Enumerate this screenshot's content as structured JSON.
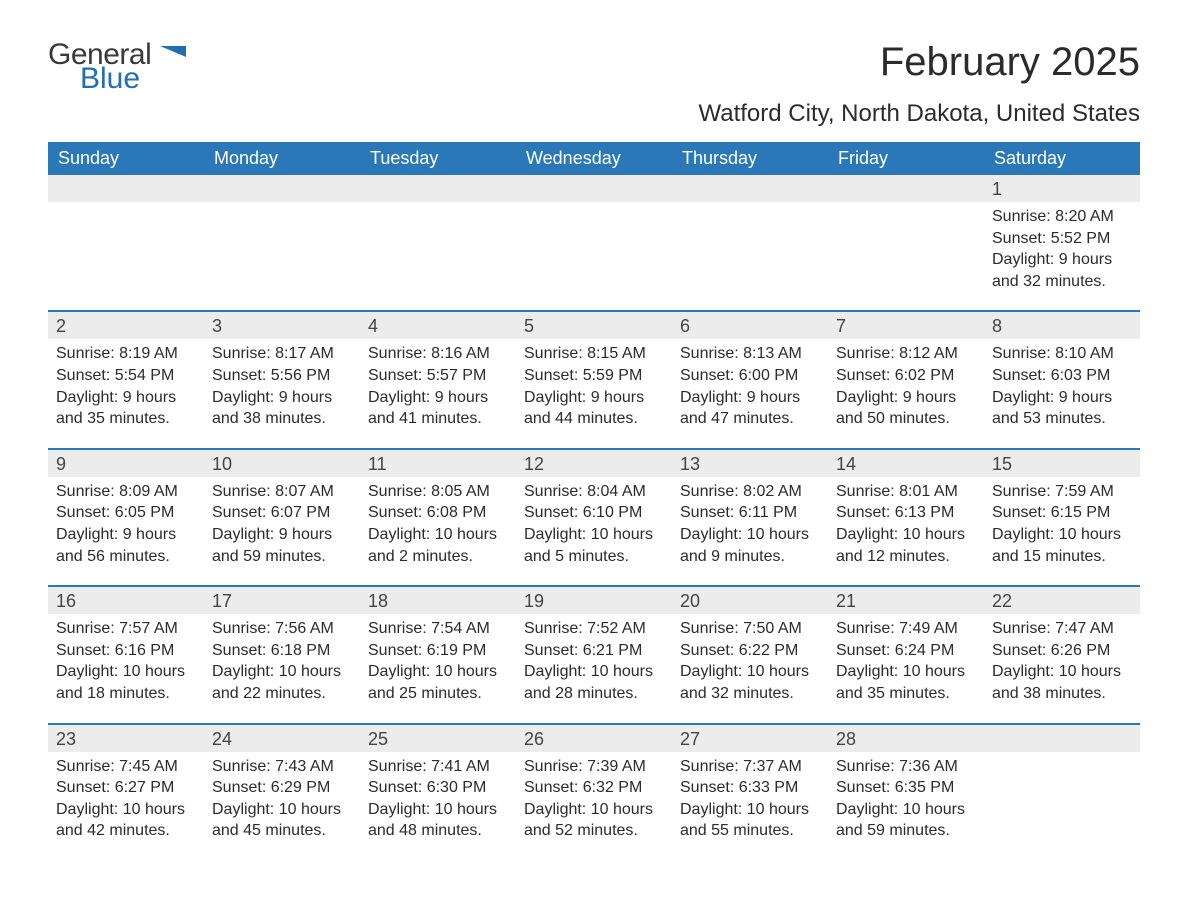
{
  "logo": {
    "text1": "General",
    "text2": "Blue",
    "flag_color": "#1f6fb2"
  },
  "title": "February 2025",
  "subtitle": "Watford City, North Dakota, United States",
  "header_bg": "#2b78b8",
  "header_fg": "#ffffff",
  "num_bg": "#ececec",
  "week_border": "#2b78b8",
  "daynames": [
    "Sunday",
    "Monday",
    "Tuesday",
    "Wednesday",
    "Thursday",
    "Friday",
    "Saturday"
  ],
  "weeks": [
    [
      {
        "n": "",
        "lines": []
      },
      {
        "n": "",
        "lines": []
      },
      {
        "n": "",
        "lines": []
      },
      {
        "n": "",
        "lines": []
      },
      {
        "n": "",
        "lines": []
      },
      {
        "n": "",
        "lines": []
      },
      {
        "n": "1",
        "lines": [
          "Sunrise: 8:20 AM",
          "Sunset: 5:52 PM",
          "Daylight: 9 hours and 32 minutes."
        ]
      }
    ],
    [
      {
        "n": "2",
        "lines": [
          "Sunrise: 8:19 AM",
          "Sunset: 5:54 PM",
          "Daylight: 9 hours and 35 minutes."
        ]
      },
      {
        "n": "3",
        "lines": [
          "Sunrise: 8:17 AM",
          "Sunset: 5:56 PM",
          "Daylight: 9 hours and 38 minutes."
        ]
      },
      {
        "n": "4",
        "lines": [
          "Sunrise: 8:16 AM",
          "Sunset: 5:57 PM",
          "Daylight: 9 hours and 41 minutes."
        ]
      },
      {
        "n": "5",
        "lines": [
          "Sunrise: 8:15 AM",
          "Sunset: 5:59 PM",
          "Daylight: 9 hours and 44 minutes."
        ]
      },
      {
        "n": "6",
        "lines": [
          "Sunrise: 8:13 AM",
          "Sunset: 6:00 PM",
          "Daylight: 9 hours and 47 minutes."
        ]
      },
      {
        "n": "7",
        "lines": [
          "Sunrise: 8:12 AM",
          "Sunset: 6:02 PM",
          "Daylight: 9 hours and 50 minutes."
        ]
      },
      {
        "n": "8",
        "lines": [
          "Sunrise: 8:10 AM",
          "Sunset: 6:03 PM",
          "Daylight: 9 hours and 53 minutes."
        ]
      }
    ],
    [
      {
        "n": "9",
        "lines": [
          "Sunrise: 8:09 AM",
          "Sunset: 6:05 PM",
          "Daylight: 9 hours and 56 minutes."
        ]
      },
      {
        "n": "10",
        "lines": [
          "Sunrise: 8:07 AM",
          "Sunset: 6:07 PM",
          "Daylight: 9 hours and 59 minutes."
        ]
      },
      {
        "n": "11",
        "lines": [
          "Sunrise: 8:05 AM",
          "Sunset: 6:08 PM",
          "Daylight: 10 hours and 2 minutes."
        ]
      },
      {
        "n": "12",
        "lines": [
          "Sunrise: 8:04 AM",
          "Sunset: 6:10 PM",
          "Daylight: 10 hours and 5 minutes."
        ]
      },
      {
        "n": "13",
        "lines": [
          "Sunrise: 8:02 AM",
          "Sunset: 6:11 PM",
          "Daylight: 10 hours and 9 minutes."
        ]
      },
      {
        "n": "14",
        "lines": [
          "Sunrise: 8:01 AM",
          "Sunset: 6:13 PM",
          "Daylight: 10 hours and 12 minutes."
        ]
      },
      {
        "n": "15",
        "lines": [
          "Sunrise: 7:59 AM",
          "Sunset: 6:15 PM",
          "Daylight: 10 hours and 15 minutes."
        ]
      }
    ],
    [
      {
        "n": "16",
        "lines": [
          "Sunrise: 7:57 AM",
          "Sunset: 6:16 PM",
          "Daylight: 10 hours and 18 minutes."
        ]
      },
      {
        "n": "17",
        "lines": [
          "Sunrise: 7:56 AM",
          "Sunset: 6:18 PM",
          "Daylight: 10 hours and 22 minutes."
        ]
      },
      {
        "n": "18",
        "lines": [
          "Sunrise: 7:54 AM",
          "Sunset: 6:19 PM",
          "Daylight: 10 hours and 25 minutes."
        ]
      },
      {
        "n": "19",
        "lines": [
          "Sunrise: 7:52 AM",
          "Sunset: 6:21 PM",
          "Daylight: 10 hours and 28 minutes."
        ]
      },
      {
        "n": "20",
        "lines": [
          "Sunrise: 7:50 AM",
          "Sunset: 6:22 PM",
          "Daylight: 10 hours and 32 minutes."
        ]
      },
      {
        "n": "21",
        "lines": [
          "Sunrise: 7:49 AM",
          "Sunset: 6:24 PM",
          "Daylight: 10 hours and 35 minutes."
        ]
      },
      {
        "n": "22",
        "lines": [
          "Sunrise: 7:47 AM",
          "Sunset: 6:26 PM",
          "Daylight: 10 hours and 38 minutes."
        ]
      }
    ],
    [
      {
        "n": "23",
        "lines": [
          "Sunrise: 7:45 AM",
          "Sunset: 6:27 PM",
          "Daylight: 10 hours and 42 minutes."
        ]
      },
      {
        "n": "24",
        "lines": [
          "Sunrise: 7:43 AM",
          "Sunset: 6:29 PM",
          "Daylight: 10 hours and 45 minutes."
        ]
      },
      {
        "n": "25",
        "lines": [
          "Sunrise: 7:41 AM",
          "Sunset: 6:30 PM",
          "Daylight: 10 hours and 48 minutes."
        ]
      },
      {
        "n": "26",
        "lines": [
          "Sunrise: 7:39 AM",
          "Sunset: 6:32 PM",
          "Daylight: 10 hours and 52 minutes."
        ]
      },
      {
        "n": "27",
        "lines": [
          "Sunrise: 7:37 AM",
          "Sunset: 6:33 PM",
          "Daylight: 10 hours and 55 minutes."
        ]
      },
      {
        "n": "28",
        "lines": [
          "Sunrise: 7:36 AM",
          "Sunset: 6:35 PM",
          "Daylight: 10 hours and 59 minutes."
        ]
      },
      {
        "n": "",
        "lines": []
      }
    ]
  ]
}
